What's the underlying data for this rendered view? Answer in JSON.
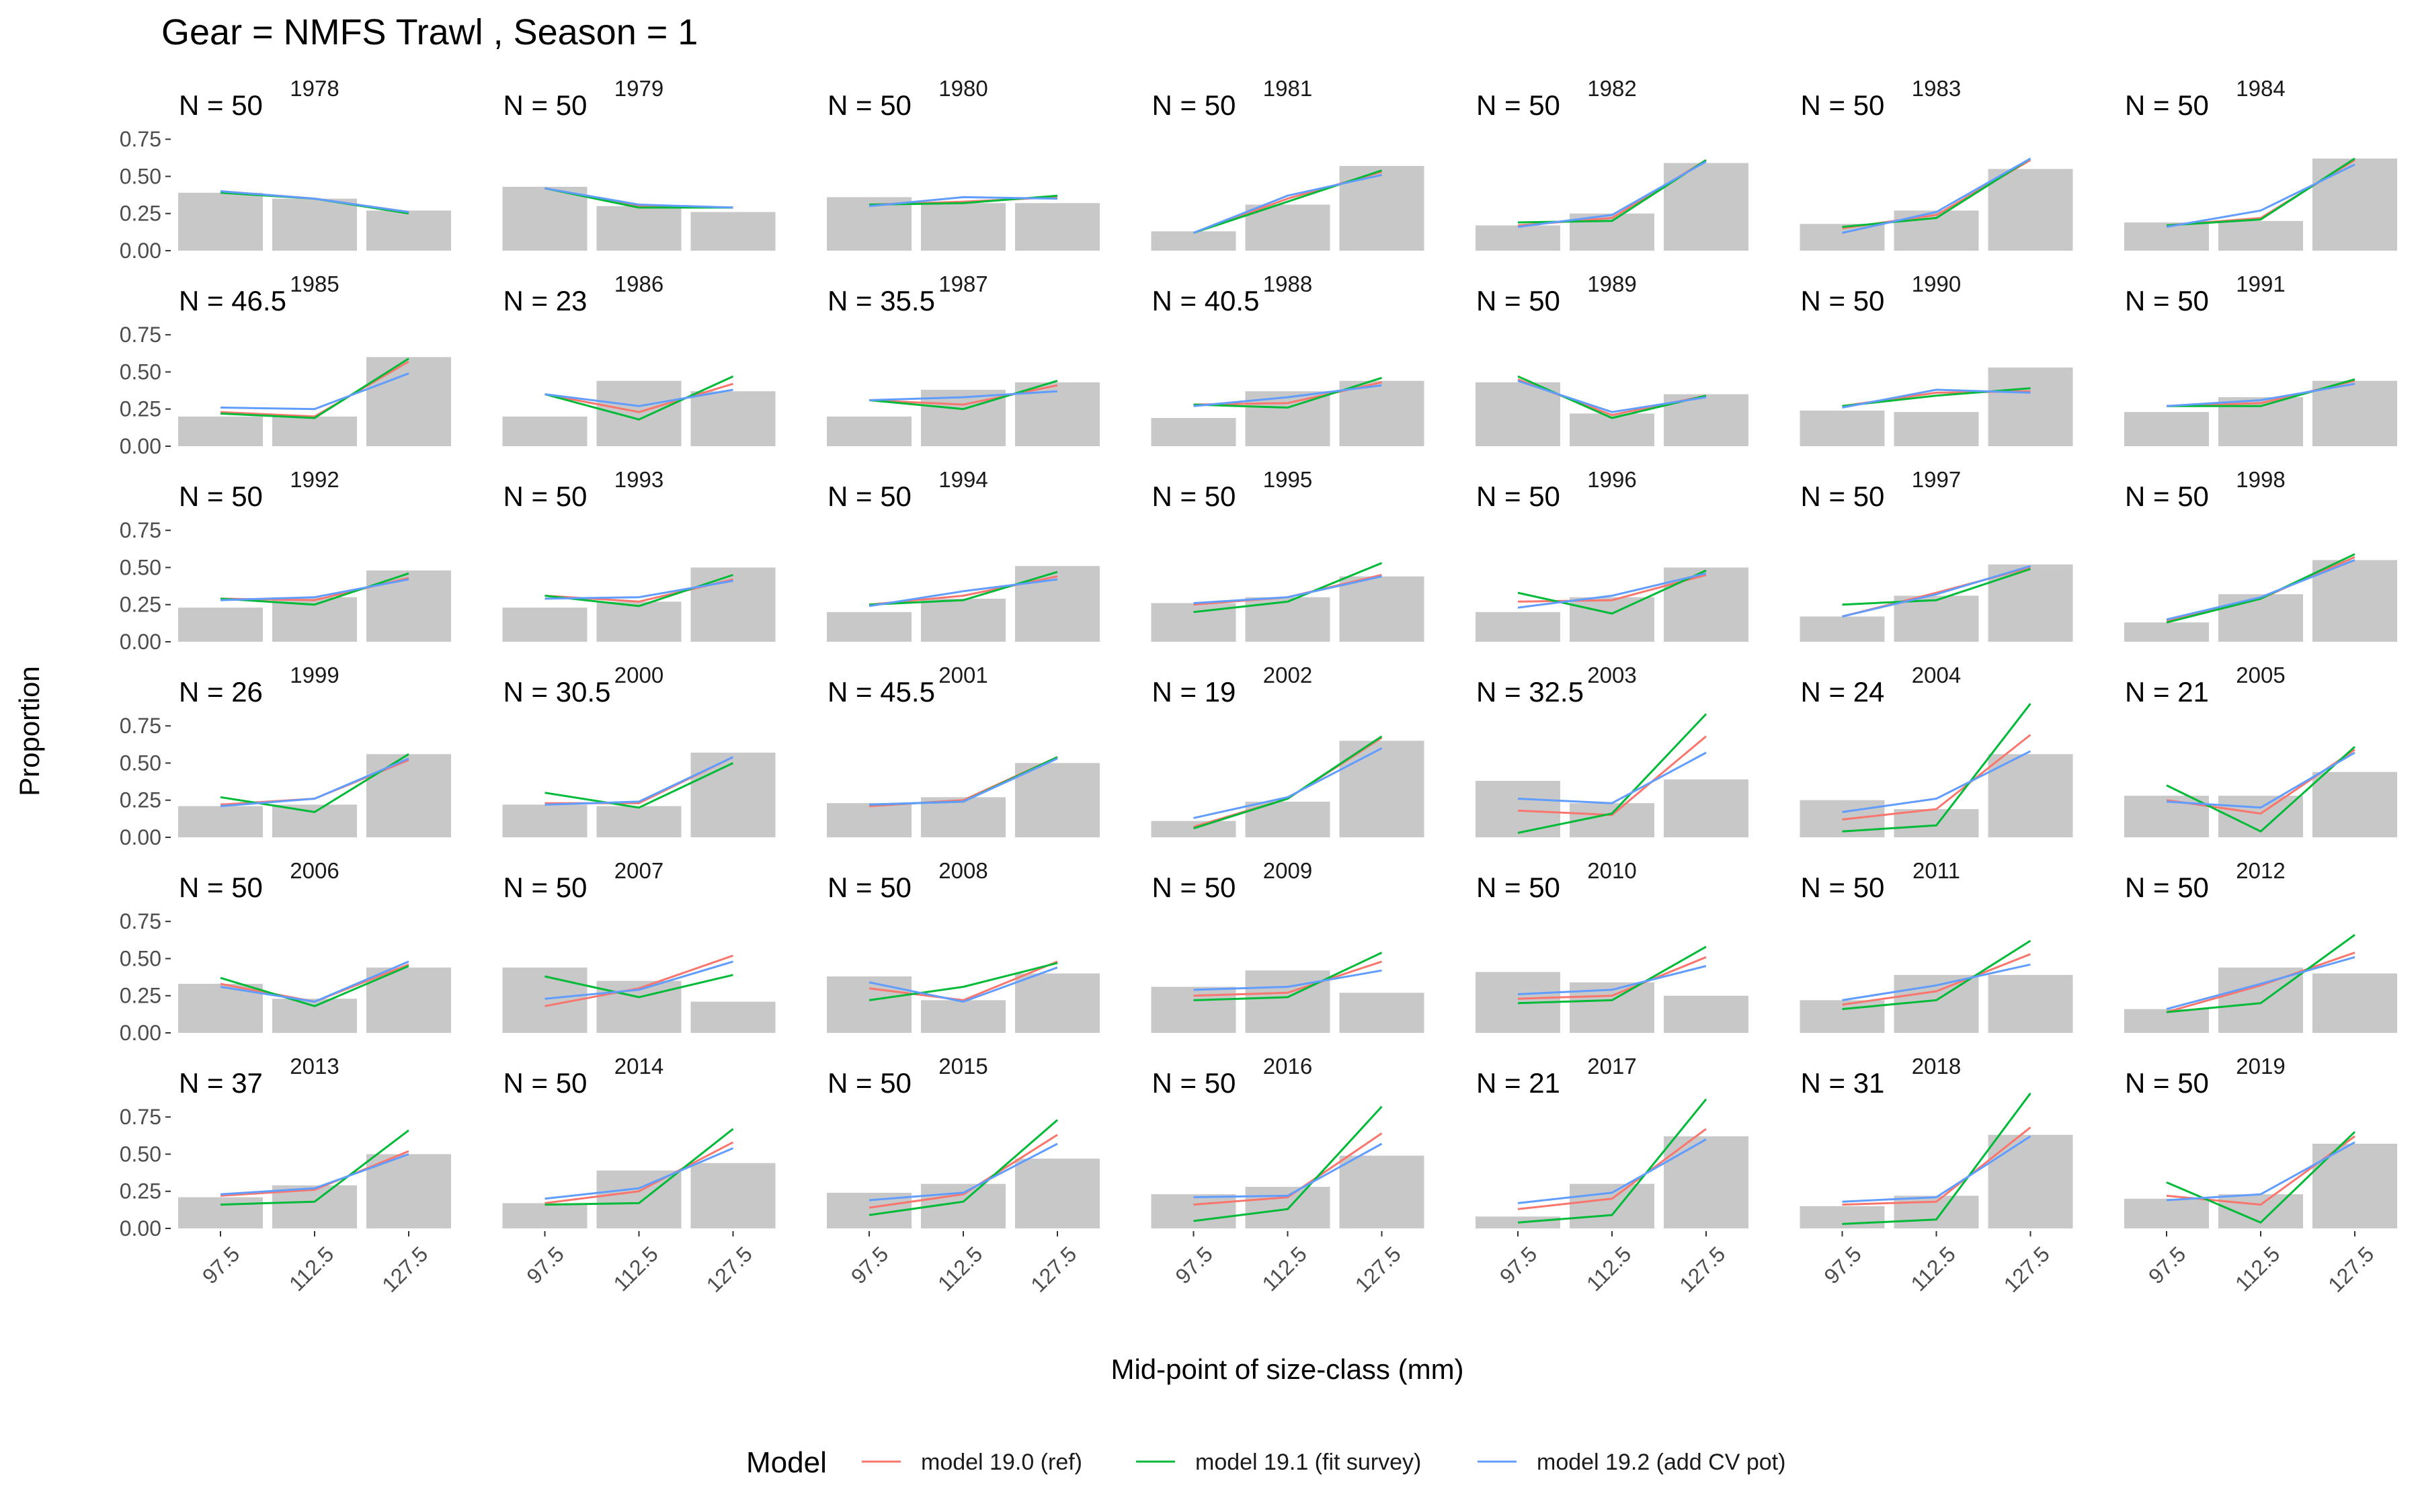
{
  "chart_data": {
    "type": "faceted-bar-line",
    "title": "Gear = NMFS Trawl , Season = 1",
    "xlabel": "Mid-point of size-class (mm)",
    "ylabel": "Proportion",
    "categories": [
      "97.5",
      "112.5",
      "127.5"
    ],
    "ylim": [
      0,
      0.95
    ],
    "yticks": [
      0,
      0.25,
      0.5,
      0.75
    ],
    "ytick_labels": [
      "0.00",
      "0.25",
      "0.50",
      "0.75"
    ],
    "grid": false,
    "legend": {
      "title": "Model",
      "position": "bottom",
      "entries": [
        {
          "name": "model 19.0 (ref)",
          "color": "#F8766D"
        },
        {
          "name": "model 19.1 (fit survey)",
          "color": "#00BA38"
        },
        {
          "name": "model 19.2 (add CV pot)",
          "color": "#619CFF"
        }
      ]
    },
    "bar_color": "#c8c8c8",
    "facets": [
      {
        "year": "1978",
        "n": "N = 50",
        "observed": [
          0.39,
          0.35,
          0.27
        ],
        "ref": [
          0.4,
          0.35,
          0.26
        ],
        "fit_survey": [
          0.39,
          0.35,
          0.25
        ],
        "add_cv_pot": [
          0.4,
          0.35,
          0.26
        ]
      },
      {
        "year": "1979",
        "n": "N = 50",
        "observed": [
          0.43,
          0.3,
          0.26
        ],
        "ref": [
          0.42,
          0.3,
          0.29
        ],
        "fit_survey": [
          0.42,
          0.29,
          0.29
        ],
        "add_cv_pot": [
          0.42,
          0.31,
          0.29
        ]
      },
      {
        "year": "1980",
        "n": "N = 50",
        "observed": [
          0.36,
          0.32,
          0.32
        ],
        "ref": [
          0.31,
          0.33,
          0.36
        ],
        "fit_survey": [
          0.31,
          0.32,
          0.37
        ],
        "add_cv_pot": [
          0.3,
          0.36,
          0.35
        ]
      },
      {
        "year": "1981",
        "n": "N = 50",
        "observed": [
          0.13,
          0.31,
          0.57
        ],
        "ref": [
          0.12,
          0.35,
          0.53
        ],
        "fit_survey": [
          0.12,
          0.33,
          0.54
        ],
        "add_cv_pot": [
          0.12,
          0.37,
          0.51
        ]
      },
      {
        "year": "1982",
        "n": "N = 50",
        "observed": [
          0.17,
          0.25,
          0.59
        ],
        "ref": [
          0.17,
          0.22,
          0.61
        ],
        "fit_survey": [
          0.19,
          0.2,
          0.61
        ],
        "add_cv_pot": [
          0.16,
          0.24,
          0.6
        ]
      },
      {
        "year": "1983",
        "n": "N = 50",
        "observed": [
          0.18,
          0.27,
          0.55
        ],
        "ref": [
          0.15,
          0.24,
          0.61
        ],
        "fit_survey": [
          0.16,
          0.22,
          0.62
        ],
        "add_cv_pot": [
          0.12,
          0.26,
          0.62
        ]
      },
      {
        "year": "1984",
        "n": "N = 50",
        "observed": [
          0.19,
          0.2,
          0.62
        ],
        "ref": [
          0.17,
          0.22,
          0.61
        ],
        "fit_survey": [
          0.17,
          0.21,
          0.62
        ],
        "add_cv_pot": [
          0.16,
          0.27,
          0.58
        ]
      },
      {
        "year": "1985",
        "n": "N = 46.5",
        "observed": [
          0.2,
          0.2,
          0.6
        ],
        "ref": [
          0.23,
          0.2,
          0.57
        ],
        "fit_survey": [
          0.22,
          0.19,
          0.59
        ],
        "add_cv_pot": [
          0.26,
          0.25,
          0.49
        ]
      },
      {
        "year": "1986",
        "n": "N = 23",
        "observed": [
          0.2,
          0.44,
          0.37
        ],
        "ref": [
          0.35,
          0.23,
          0.42
        ],
        "fit_survey": [
          0.35,
          0.18,
          0.47
        ],
        "add_cv_pot": [
          0.35,
          0.27,
          0.38
        ]
      },
      {
        "year": "1987",
        "n": "N = 35.5",
        "observed": [
          0.2,
          0.38,
          0.43
        ],
        "ref": [
          0.31,
          0.28,
          0.41
        ],
        "fit_survey": [
          0.31,
          0.25,
          0.44
        ],
        "add_cv_pot": [
          0.31,
          0.33,
          0.37
        ]
      },
      {
        "year": "1988",
        "n": "N = 40.5",
        "observed": [
          0.19,
          0.37,
          0.44
        ],
        "ref": [
          0.28,
          0.29,
          0.43
        ],
        "fit_survey": [
          0.28,
          0.26,
          0.46
        ],
        "add_cv_pot": [
          0.27,
          0.33,
          0.41
        ]
      },
      {
        "year": "1989",
        "n": "N = 50",
        "observed": [
          0.43,
          0.22,
          0.35
        ],
        "ref": [
          0.45,
          0.21,
          0.34
        ],
        "fit_survey": [
          0.47,
          0.19,
          0.34
        ],
        "add_cv_pot": [
          0.44,
          0.23,
          0.33
        ]
      },
      {
        "year": "1990",
        "n": "N = 50",
        "observed": [
          0.24,
          0.23,
          0.53
        ],
        "ref": [
          0.27,
          0.36,
          0.37
        ],
        "fit_survey": [
          0.27,
          0.34,
          0.39
        ],
        "add_cv_pot": [
          0.26,
          0.38,
          0.36
        ]
      },
      {
        "year": "1991",
        "n": "N = 50",
        "observed": [
          0.23,
          0.33,
          0.44
        ],
        "ref": [
          0.27,
          0.29,
          0.44
        ],
        "fit_survey": [
          0.27,
          0.27,
          0.45
        ],
        "add_cv_pot": [
          0.27,
          0.31,
          0.42
        ]
      },
      {
        "year": "1992",
        "n": "N = 50",
        "observed": [
          0.23,
          0.3,
          0.48
        ],
        "ref": [
          0.29,
          0.28,
          0.43
        ],
        "fit_survey": [
          0.29,
          0.25,
          0.46
        ],
        "add_cv_pot": [
          0.28,
          0.3,
          0.42
        ]
      },
      {
        "year": "1993",
        "n": "N = 50",
        "observed": [
          0.23,
          0.27,
          0.5
        ],
        "ref": [
          0.31,
          0.27,
          0.42
        ],
        "fit_survey": [
          0.31,
          0.24,
          0.45
        ],
        "add_cv_pot": [
          0.29,
          0.3,
          0.41
        ]
      },
      {
        "year": "1994",
        "n": "N = 50",
        "observed": [
          0.2,
          0.29,
          0.51
        ],
        "ref": [
          0.25,
          0.31,
          0.44
        ],
        "fit_survey": [
          0.25,
          0.28,
          0.47
        ],
        "add_cv_pot": [
          0.24,
          0.34,
          0.42
        ]
      },
      {
        "year": "1995",
        "n": "N = 50",
        "observed": [
          0.26,
          0.3,
          0.44
        ],
        "ref": [
          0.25,
          0.3,
          0.45
        ],
        "fit_survey": [
          0.2,
          0.27,
          0.53
        ],
        "add_cv_pot": [
          0.26,
          0.3,
          0.44
        ]
      },
      {
        "year": "1996",
        "n": "N = 50",
        "observed": [
          0.2,
          0.3,
          0.5
        ],
        "ref": [
          0.27,
          0.28,
          0.45
        ],
        "fit_survey": [
          0.33,
          0.19,
          0.48
        ],
        "add_cv_pot": [
          0.23,
          0.31,
          0.46
        ]
      },
      {
        "year": "1997",
        "n": "N = 50",
        "observed": [
          0.17,
          0.31,
          0.52
        ],
        "ref": [
          0.17,
          0.33,
          0.5
        ],
        "fit_survey": [
          0.25,
          0.28,
          0.49
        ],
        "add_cv_pot": [
          0.17,
          0.32,
          0.51
        ]
      },
      {
        "year": "1998",
        "n": "N = 50",
        "observed": [
          0.13,
          0.32,
          0.55
        ],
        "ref": [
          0.14,
          0.29,
          0.57
        ],
        "fit_survey": [
          0.13,
          0.29,
          0.59
        ],
        "add_cv_pot": [
          0.15,
          0.3,
          0.55
        ]
      },
      {
        "year": "1999",
        "n": "N = 26",
        "observed": [
          0.21,
          0.22,
          0.56
        ],
        "ref": [
          0.22,
          0.26,
          0.52
        ],
        "fit_survey": [
          0.27,
          0.17,
          0.56
        ],
        "add_cv_pot": [
          0.21,
          0.26,
          0.53
        ]
      },
      {
        "year": "2000",
        "n": "N = 30.5",
        "observed": [
          0.22,
          0.21,
          0.57
        ],
        "ref": [
          0.23,
          0.23,
          0.54
        ],
        "fit_survey": [
          0.3,
          0.2,
          0.5
        ],
        "add_cv_pot": [
          0.22,
          0.24,
          0.54
        ]
      },
      {
        "year": "2001",
        "n": "N = 45.5",
        "observed": [
          0.23,
          0.27,
          0.5
        ],
        "ref": [
          0.21,
          0.25,
          0.54
        ],
        "fit_survey": [
          0.22,
          0.24,
          0.54
        ],
        "add_cv_pot": [
          0.22,
          0.24,
          0.53
        ]
      },
      {
        "year": "2002",
        "n": "N = 19",
        "observed": [
          0.11,
          0.24,
          0.65
        ],
        "ref": [
          0.07,
          0.26,
          0.67
        ],
        "fit_survey": [
          0.06,
          0.26,
          0.68
        ],
        "add_cv_pot": [
          0.13,
          0.27,
          0.6
        ]
      },
      {
        "year": "2003",
        "n": "N = 32.5",
        "observed": [
          0.38,
          0.23,
          0.39
        ],
        "ref": [
          0.18,
          0.15,
          0.68
        ],
        "fit_survey": [
          0.03,
          0.16,
          0.83
        ],
        "add_cv_pot": [
          0.26,
          0.23,
          0.57
        ]
      },
      {
        "year": "2004",
        "n": "N = 24",
        "observed": [
          0.25,
          0.19,
          0.56
        ],
        "ref": [
          0.12,
          0.19,
          0.69
        ],
        "fit_survey": [
          0.04,
          0.08,
          0.9
        ],
        "add_cv_pot": [
          0.17,
          0.26,
          0.58
        ]
      },
      {
        "year": "2005",
        "n": "N = 21",
        "observed": [
          0.28,
          0.28,
          0.44
        ],
        "ref": [
          0.25,
          0.16,
          0.59
        ],
        "fit_survey": [
          0.35,
          0.04,
          0.61
        ],
        "add_cv_pot": [
          0.24,
          0.2,
          0.57
        ]
      },
      {
        "year": "2006",
        "n": "N = 50",
        "observed": [
          0.33,
          0.23,
          0.44
        ],
        "ref": [
          0.33,
          0.21,
          0.46
        ],
        "fit_survey": [
          0.37,
          0.18,
          0.45
        ],
        "add_cv_pot": [
          0.31,
          0.21,
          0.48
        ]
      },
      {
        "year": "2007",
        "n": "N = 50",
        "observed": [
          0.44,
          0.35,
          0.21
        ],
        "ref": [
          0.18,
          0.3,
          0.52
        ],
        "fit_survey": [
          0.38,
          0.24,
          0.39
        ],
        "add_cv_pot": [
          0.23,
          0.29,
          0.48
        ]
      },
      {
        "year": "2008",
        "n": "N = 50",
        "observed": [
          0.38,
          0.22,
          0.4
        ],
        "ref": [
          0.3,
          0.22,
          0.48
        ],
        "fit_survey": [
          0.22,
          0.31,
          0.47
        ],
        "add_cv_pot": [
          0.34,
          0.21,
          0.44
        ]
      },
      {
        "year": "2009",
        "n": "N = 50",
        "observed": [
          0.31,
          0.42,
          0.27
        ],
        "ref": [
          0.25,
          0.27,
          0.48
        ],
        "fit_survey": [
          0.22,
          0.24,
          0.54
        ],
        "add_cv_pot": [
          0.29,
          0.31,
          0.42
        ]
      },
      {
        "year": "2010",
        "n": "N = 50",
        "observed": [
          0.41,
          0.34,
          0.25
        ],
        "ref": [
          0.23,
          0.25,
          0.51
        ],
        "fit_survey": [
          0.2,
          0.22,
          0.58
        ],
        "add_cv_pot": [
          0.26,
          0.29,
          0.45
        ]
      },
      {
        "year": "2011",
        "n": "N = 50",
        "observed": [
          0.22,
          0.39,
          0.39
        ],
        "ref": [
          0.19,
          0.28,
          0.53
        ],
        "fit_survey": [
          0.16,
          0.22,
          0.62
        ],
        "add_cv_pot": [
          0.22,
          0.32,
          0.46
        ]
      },
      {
        "year": "2012",
        "n": "N = 50",
        "observed": [
          0.16,
          0.44,
          0.4
        ],
        "ref": [
          0.14,
          0.32,
          0.54
        ],
        "fit_survey": [
          0.14,
          0.2,
          0.66
        ],
        "add_cv_pot": [
          0.16,
          0.33,
          0.51
        ]
      },
      {
        "year": "2013",
        "n": "N = 37",
        "observed": [
          0.21,
          0.29,
          0.5
        ],
        "ref": [
          0.22,
          0.26,
          0.52
        ],
        "fit_survey": [
          0.16,
          0.18,
          0.66
        ],
        "add_cv_pot": [
          0.23,
          0.27,
          0.5
        ]
      },
      {
        "year": "2014",
        "n": "N = 50",
        "observed": [
          0.17,
          0.39,
          0.44
        ],
        "ref": [
          0.17,
          0.25,
          0.58
        ],
        "fit_survey": [
          0.16,
          0.17,
          0.67
        ],
        "add_cv_pot": [
          0.2,
          0.27,
          0.54
        ]
      },
      {
        "year": "2015",
        "n": "N = 50",
        "observed": [
          0.24,
          0.3,
          0.47
        ],
        "ref": [
          0.14,
          0.23,
          0.63
        ],
        "fit_survey": [
          0.09,
          0.18,
          0.73
        ],
        "add_cv_pot": [
          0.19,
          0.24,
          0.57
        ]
      },
      {
        "year": "2016",
        "n": "N = 50",
        "observed": [
          0.23,
          0.28,
          0.49
        ],
        "ref": [
          0.16,
          0.21,
          0.64
        ],
        "fit_survey": [
          0.05,
          0.13,
          0.82
        ],
        "add_cv_pot": [
          0.21,
          0.22,
          0.57
        ]
      },
      {
        "year": "2017",
        "n": "N = 21",
        "observed": [
          0.08,
          0.3,
          0.62
        ],
        "ref": [
          0.13,
          0.2,
          0.67
        ],
        "fit_survey": [
          0.04,
          0.09,
          0.87
        ],
        "add_cv_pot": [
          0.17,
          0.24,
          0.6
        ]
      },
      {
        "year": "2018",
        "n": "N = 31",
        "observed": [
          0.15,
          0.22,
          0.63
        ],
        "ref": [
          0.16,
          0.18,
          0.68
        ],
        "fit_survey": [
          0.03,
          0.06,
          0.91
        ],
        "add_cv_pot": [
          0.18,
          0.21,
          0.62
        ]
      },
      {
        "year": "2019",
        "n": "N = 50",
        "observed": [
          0.2,
          0.23,
          0.57
        ],
        "ref": [
          0.22,
          0.16,
          0.62
        ],
        "fit_survey": [
          0.31,
          0.04,
          0.65
        ],
        "add_cv_pot": [
          0.19,
          0.23,
          0.58
        ]
      }
    ]
  }
}
